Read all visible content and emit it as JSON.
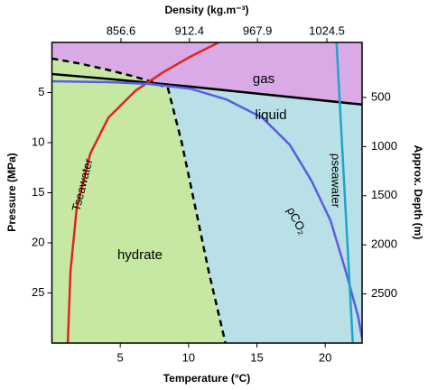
{
  "chart_data": {
    "type": "phase-diagram",
    "title": "Density (kg.m⁻³)",
    "x_label": "Temperature (°C)",
    "y_label": "Pressure (MPa)",
    "y2_label": "Approx. Depth (m)",
    "xlim": [
      0,
      22.7
    ],
    "xticks": [
      5,
      10,
      15,
      20
    ],
    "x2lim": [
      800.3,
      1053.2
    ],
    "x2ticks": [
      856.6,
      912.4,
      967.9,
      1024.5
    ],
    "ylim": [
      30,
      0
    ],
    "yticks": [
      5,
      10,
      15,
      20,
      25
    ],
    "y2lim": [
      3000,
      -60
    ],
    "y2ticks": [
      500,
      1000,
      1500,
      2000,
      2500
    ],
    "regions": [
      {
        "label": "gas",
        "color": "#d9aae6"
      },
      {
        "label": "liquid",
        "color": "#b8e0e6"
      },
      {
        "label": "hydrate",
        "color": "#c6e8a2"
      }
    ],
    "series": [
      {
        "color": "#000000",
        "dash": true,
        "x": [
          0,
          2,
          4,
          6,
          7.5,
          8.5,
          9.5,
          10.5,
          11.5,
          12.7
        ],
        "values": [
          1.6,
          2.1,
          2.7,
          3.4,
          4.0,
          4.6,
          10,
          16.5,
          23,
          30
        ]
      },
      {
        "color": "#000000",
        "dash": false,
        "x": [
          0,
          5,
          10,
          15,
          22.7
        ],
        "values": [
          3.15,
          3.75,
          4.4,
          5.1,
          6.2
        ]
      },
      {
        "name": "Tseawater",
        "color": "#e3241c",
        "dash": false,
        "x": [
          1.16,
          1.36,
          1.82,
          2.81,
          4.14,
          6.13,
          8.11,
          10.1,
          12.2
        ],
        "values": [
          30,
          22.8,
          16.5,
          11.1,
          7.5,
          4.8,
          3.0,
          1.44,
          0
        ]
      },
      {
        "name": "ρCO₂",
        "color": "#5c5ce8",
        "dash": false,
        "x": [
          0,
          4.14,
          7.12,
          10.1,
          12.75,
          15.4,
          17.4,
          19.0,
          20.4,
          21.5,
          22.4,
          22.7
        ],
        "values": [
          3.87,
          3.96,
          4.14,
          4.6,
          5.68,
          7.5,
          10.2,
          13.8,
          17.8,
          22.8,
          27.3,
          29.5
        ]
      },
      {
        "name": "ρseawater",
        "color": "#1fa3c9",
        "dash": false,
        "x": [
          20.83,
          22.02
        ],
        "values": [
          0,
          30
        ]
      }
    ]
  }
}
